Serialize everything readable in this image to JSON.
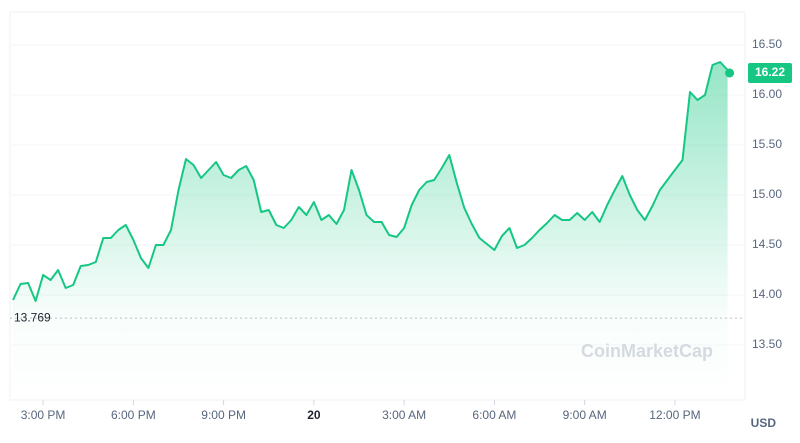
{
  "chart_data": {
    "type": "line",
    "x": [
      14,
      14.25,
      14.5,
      14.75,
      15,
      15.25,
      15.5,
      15.75,
      16,
      16.25,
      16.5,
      16.75,
      17,
      17.25,
      17.5,
      17.75,
      18,
      18.25,
      18.5,
      18.75,
      19,
      19.25,
      19.5,
      19.75,
      20,
      20.25,
      20.5,
      20.75,
      21,
      21.25,
      21.5,
      21.75,
      22,
      22.25,
      22.5,
      22.75,
      23,
      23.25,
      23.5,
      23.75,
      24,
      24.25,
      24.5,
      24.75,
      25,
      25.25,
      25.5,
      25.75,
      26,
      26.25,
      26.5,
      26.75,
      27,
      27.25,
      27.5,
      27.75,
      28,
      28.25,
      28.5,
      28.75,
      29,
      29.25,
      29.5,
      29.75,
      30,
      30.25,
      30.5,
      30.75,
      31,
      31.25,
      31.5,
      31.75,
      32,
      32.25,
      32.5,
      32.75,
      33,
      33.25,
      33.5,
      33.75,
      34,
      34.25,
      34.5,
      34.75,
      35,
      35.25,
      35.5,
      35.75,
      36,
      36.25,
      36.5,
      36.75,
      37,
      37.25,
      37.5,
      37.75
    ],
    "series": [
      {
        "color": "#16c784",
        "values": [
          13.95,
          14.11,
          14.12,
          13.94,
          14.2,
          14.15,
          14.25,
          14.07,
          14.1,
          14.29,
          14.3,
          14.33,
          14.57,
          14.57,
          14.65,
          14.7,
          14.55,
          14.37,
          14.27,
          14.5,
          14.5,
          14.65,
          15.05,
          15.36,
          15.3,
          15.17,
          15.25,
          15.33,
          15.2,
          15.17,
          15.25,
          15.29,
          15.15,
          14.83,
          14.85,
          14.7,
          14.67,
          14.75,
          14.88,
          14.8,
          14.93,
          14.75,
          14.8,
          14.71,
          14.85,
          15.25,
          15.05,
          14.8,
          14.73,
          14.73,
          14.6,
          14.58,
          14.67,
          14.9,
          15.05,
          15.13,
          15.15,
          15.27,
          15.4,
          15.12,
          14.87,
          14.71,
          14.57,
          14.51,
          14.45,
          14.59,
          14.67,
          14.47,
          14.5,
          14.57,
          14.65,
          14.72,
          14.8,
          14.75,
          14.75,
          14.82,
          14.75,
          14.83,
          14.73,
          14.9,
          15.05,
          15.19,
          15,
          14.85,
          14.75,
          14.89,
          15.05,
          15.15,
          15.25,
          15.35,
          16.03,
          15.95,
          16,
          16.3,
          16.33,
          16.25
        ]
      }
    ],
    "current_price": 16.22,
    "reference_value": 13.769,
    "xlim": [
      13.9,
      37.83
    ],
    "xticks": [
      {
        "value": 15,
        "label": "3:00 PM"
      },
      {
        "value": 18,
        "label": "6:00 PM"
      },
      {
        "value": 21,
        "label": "9:00 PM"
      },
      {
        "value": 24,
        "label": "20"
      },
      {
        "value": 27,
        "label": "3:00 AM"
      },
      {
        "value": 30,
        "label": "6:00 AM"
      },
      {
        "value": 33,
        "label": "9:00 AM"
      },
      {
        "value": 36,
        "label": "12:00 PM"
      }
    ],
    "ylim": [
      12.95,
      16.83
    ],
    "yticks": [
      {
        "value": 13.5,
        "label": "13.50"
      },
      {
        "value": 14,
        "label": "14.00"
      },
      {
        "value": 14.5,
        "label": "14.50"
      },
      {
        "value": 15,
        "label": "15.00"
      },
      {
        "value": 15.5,
        "label": "15.50"
      },
      {
        "value": 16,
        "label": "16.00"
      },
      {
        "value": 16.5,
        "label": "16.50"
      }
    ],
    "currency": "USD",
    "watermark": "CoinMarketCap",
    "grid": true
  }
}
